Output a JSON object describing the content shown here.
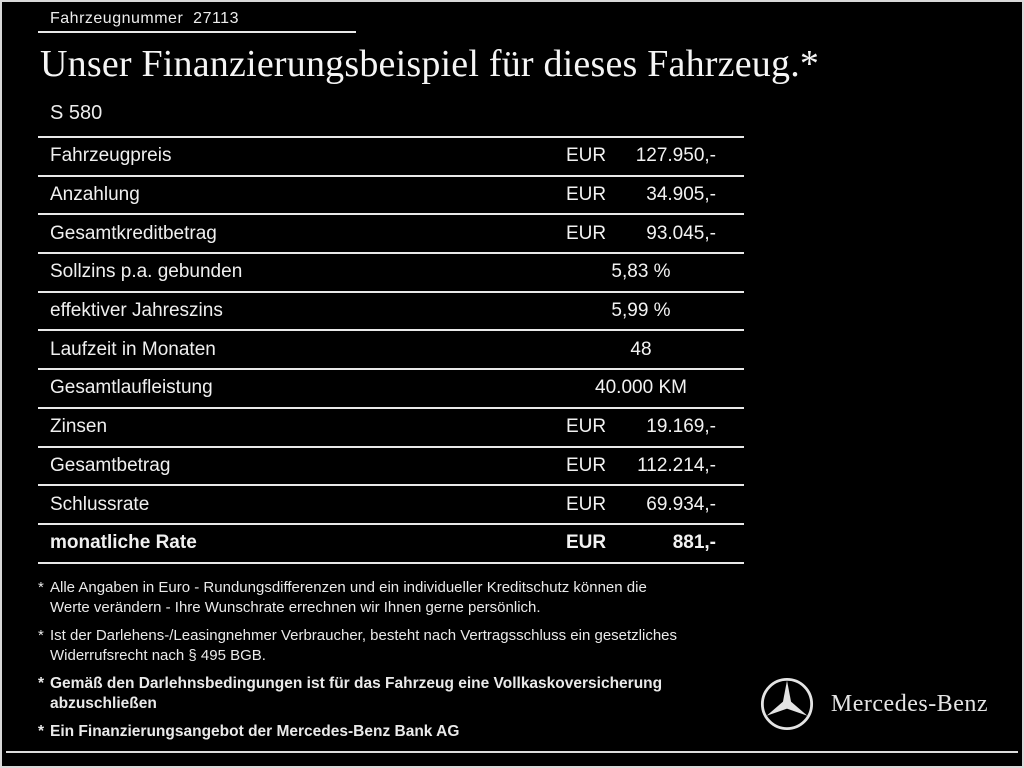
{
  "header": {
    "vehicle_number": "Fahrzeugnummer  27113",
    "title": "Unser Finanzierungsbeispiel für dieses Fahrzeug.*",
    "model": "S 580"
  },
  "table": {
    "rows": [
      {
        "label": "Fahrzeugpreis",
        "currency": "EUR",
        "amount": "127.950,-",
        "bold": false
      },
      {
        "label": "Anzahlung",
        "currency": "EUR",
        "amount": "34.905,-",
        "bold": false
      },
      {
        "label": "Gesamtkreditbetrag",
        "currency": "EUR",
        "amount": "93.045,-",
        "bold": false
      },
      {
        "label": "Sollzins p.a. gebunden",
        "currency": "",
        "amount": "5,83 %",
        "bold": false
      },
      {
        "label": "effektiver Jahreszins",
        "currency": "",
        "amount": "5,99 %",
        "bold": false
      },
      {
        "label": "Laufzeit in Monaten",
        "currency": "",
        "amount": "48",
        "bold": false
      },
      {
        "label": "Gesamtlaufleistung",
        "currency": "",
        "amount": "40.000 KM",
        "bold": false
      },
      {
        "label": "Zinsen",
        "currency": "EUR",
        "amount": "19.169,-",
        "bold": false
      },
      {
        "label": "Gesamtbetrag",
        "currency": "EUR",
        "amount": "112.214,-",
        "bold": false
      },
      {
        "label": "Schlussrate",
        "currency": "EUR",
        "amount": "69.934,-",
        "bold": false
      },
      {
        "label": "monatliche Rate",
        "currency": "EUR",
        "amount": "881,-",
        "bold": true
      }
    ]
  },
  "footnotes": [
    {
      "marker": "*",
      "text": "Alle Angaben in Euro - Rundungsdifferenzen und ein individueller Kreditschutz können die Werte verändern - Ihre Wunschrate errechnen wir Ihnen gerne persönlich.",
      "bold": false
    },
    {
      "marker": "*",
      "text": "Ist der Darlehens-/Leasingnehmer Verbraucher, besteht nach Vertragsschluss ein gesetzliches Widerrufsrecht nach § 495 BGB.",
      "bold": false
    },
    {
      "marker": "*",
      "text": "Gemäß den Darlehnsbedingungen ist für das Fahrzeug eine Vollkaskoversicherung abzuschließen",
      "bold": true
    },
    {
      "marker": "*",
      "text": "Ein Finanzierungsangebot der Mercedes-Benz Bank AG",
      "bold": true
    }
  ],
  "branding": {
    "name": "Mercedes-Benz",
    "logo_icon": "mercedes-star-icon"
  },
  "colors": {
    "background": "#000000",
    "text": "#f2f2f2",
    "line": "#e9e9e9"
  }
}
